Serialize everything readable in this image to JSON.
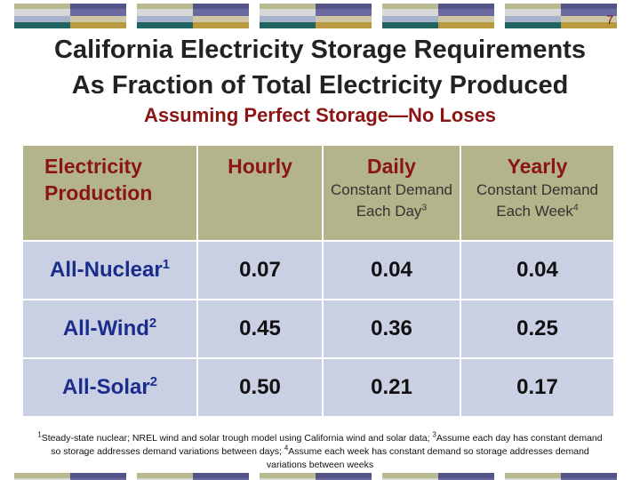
{
  "page_number": "7",
  "title_line1": "California Electricity Storage Requirements",
  "title_line2": "As Fraction of Total Electricity Produced",
  "subtitle": "Assuming Perfect Storage—No Loses",
  "table": {
    "headers": [
      {
        "main": "Electricity Production",
        "sub": "",
        "sup": ""
      },
      {
        "main": "Hourly",
        "sub": "",
        "sup": ""
      },
      {
        "main": "Daily",
        "sub": "Constant Demand Each Day",
        "sup": "3"
      },
      {
        "main": "Yearly",
        "sub": "Constant Demand Each Week",
        "sup": "4"
      }
    ],
    "rows": [
      {
        "label": "All-Nuclear",
        "sup": "1",
        "values": [
          "0.07",
          "0.04",
          "0.04"
        ]
      },
      {
        "label": "All-Wind",
        "sup": "2",
        "values": [
          "0.45",
          "0.36",
          "0.25"
        ]
      },
      {
        "label": "All-Solar",
        "sup": "2",
        "values": [
          "0.50",
          "0.21",
          "0.17"
        ]
      }
    ]
  },
  "footnote": {
    "sup1": "1",
    "text1": "Steady-state nuclear; NREL wind and solar trough model using California wind and solar data; ",
    "sup3": "3",
    "text3": "Assume each day has constant demand so storage addresses demand variations between days; ",
    "sup4": "4",
    "text4": "Assume each week has constant demand so storage addresses demand variations between weeks"
  },
  "colors": {
    "title": "#222222",
    "subtitle": "#8b1414",
    "header_bg": "#b4b48a",
    "row_bg": "#c9d0e3",
    "row_label": "#1a2c8c"
  }
}
